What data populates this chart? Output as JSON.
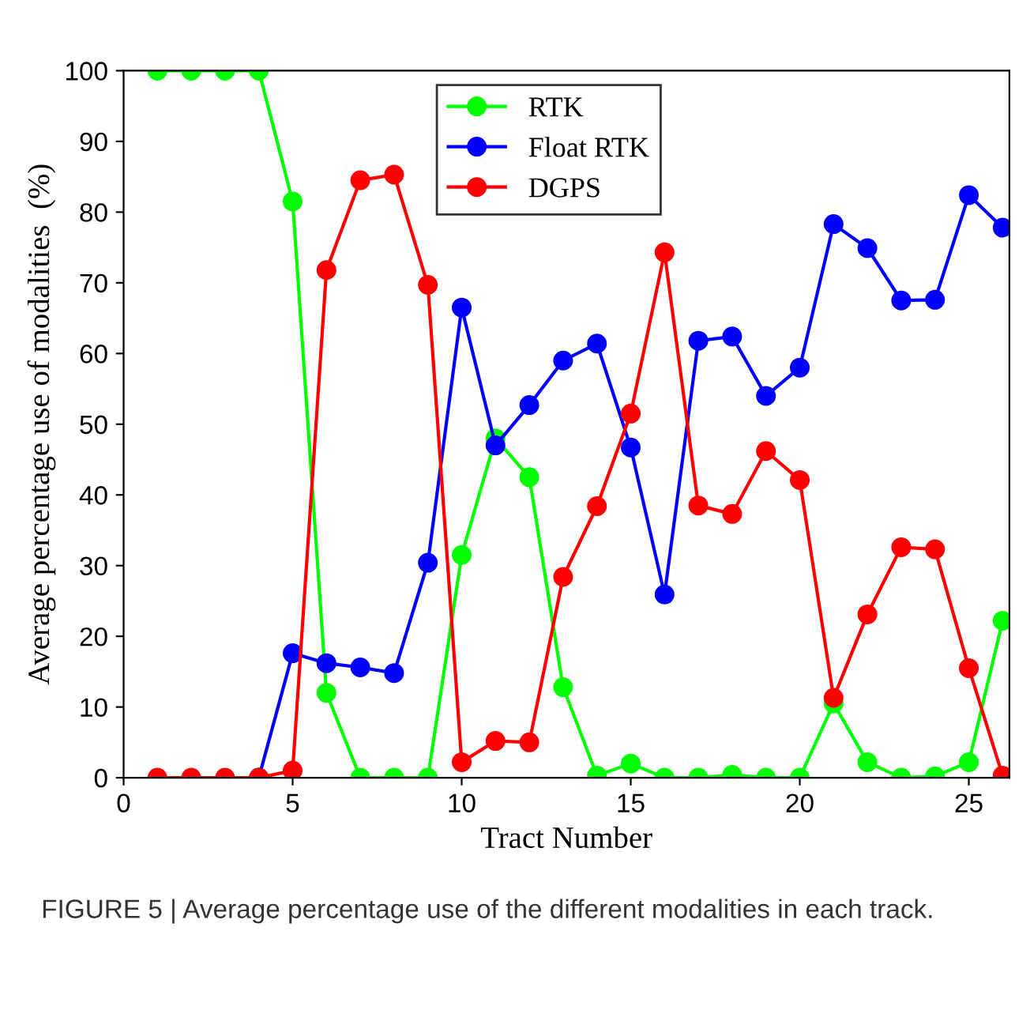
{
  "chart_data": {
    "type": "line",
    "xlabel": "Tract Number",
    "ylabel": "Average percentage use of modalities  (%)",
    "x": [
      1,
      2,
      3,
      4,
      5,
      6,
      7,
      8,
      9,
      10,
      11,
      12,
      13,
      14,
      15,
      16,
      17,
      18,
      19,
      20,
      21,
      22,
      23,
      24,
      25,
      26
    ],
    "series": [
      {
        "name": "RTK",
        "color": "#00ff00",
        "values": [
          100,
          100,
          100,
          100,
          81.5,
          12,
          0,
          0,
          0,
          31.5,
          48,
          42.5,
          12.8,
          0.3,
          2,
          0,
          0,
          0.4,
          0,
          0,
          10.5,
          2.2,
          0,
          0.2,
          2.2,
          22.2
        ]
      },
      {
        "name": "Float RTK",
        "color": "#0000ff",
        "values": [
          null,
          null,
          null,
          0,
          17.6,
          16.2,
          15.6,
          14.8,
          30.4,
          66.5,
          47,
          52.7,
          59,
          61.4,
          46.7,
          25.9,
          61.8,
          62.4,
          54,
          58,
          78.3,
          74.9,
          67.5,
          67.6,
          82.4,
          77.8
        ]
      },
      {
        "name": "DGPS",
        "color": "#ff0000",
        "values": [
          0,
          0,
          0,
          0,
          1,
          71.8,
          84.5,
          85.3,
          69.7,
          2.2,
          5.2,
          5,
          28.4,
          38.4,
          51.5,
          74.3,
          38.5,
          37.3,
          46.2,
          42.1,
          11.3,
          23.1,
          32.6,
          32.3,
          15.5,
          0.3
        ]
      }
    ],
    "xlim": [
      0,
      26.2
    ],
    "ylim": [
      0,
      100
    ],
    "xticks": [
      0,
      5,
      10,
      15,
      20,
      25
    ],
    "yticks": [
      0,
      10,
      20,
      30,
      40,
      50,
      60,
      70,
      80,
      90,
      100
    ],
    "grid": false,
    "legend": "top",
    "marker": "circle",
    "line_style": "solid",
    "annotations": [
      "FIGURE 5 | Average percentage use of the different modalities in each track."
    ]
  }
}
